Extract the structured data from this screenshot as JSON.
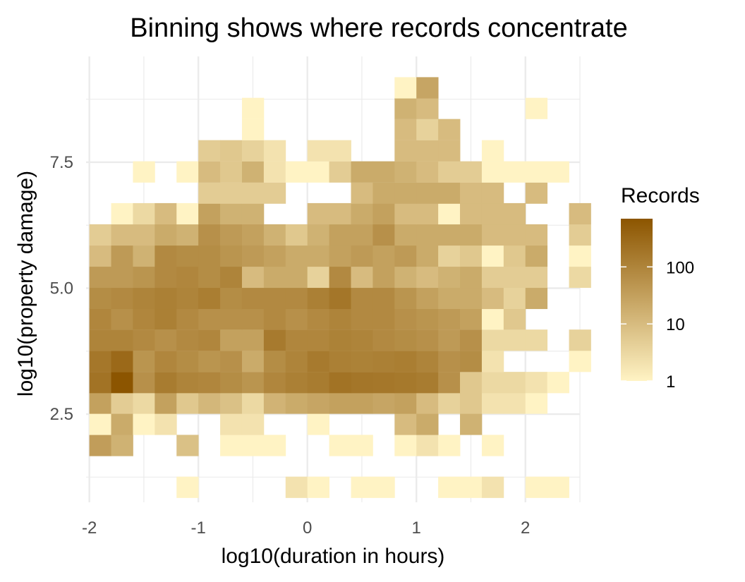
{
  "chart_data": {
    "type": "heatmap",
    "title": "Binning shows where records concentrate",
    "xlabel": "log10(duration in hours)",
    "ylabel": "log10(property damage)",
    "xlim": [
      -2.03,
      2.5
    ],
    "ylim": [
      0.75,
      9.6
    ],
    "x_ticks": [
      -2,
      -1,
      0,
      1,
      2
    ],
    "x_tick_labels": [
      "-2",
      "-1",
      "0",
      "1",
      "2"
    ],
    "y_ticks": [
      2.5,
      5.0,
      7.5
    ],
    "y_tick_labels": [
      "2.5",
      "5.0",
      "7.5"
    ],
    "grid": true,
    "bin_x_origin": -1.9,
    "bin_width_x": 0.2,
    "bin_y_origin": 0.84,
    "bin_width_y": 0.417,
    "color_scale": {
      "type": "log",
      "min": 1,
      "max": 700,
      "low_color": "#fff3c4",
      "high_color": "#8c5500"
    },
    "legend": {
      "title": "Records",
      "position": "right",
      "labels": [
        "100",
        "10",
        "1"
      ],
      "values": [
        100,
        10,
        1
      ]
    },
    "rows": [
      {
        "y": 1.05,
        "counts": [
          0,
          0,
          0,
          0,
          1,
          0,
          0,
          0,
          0,
          2,
          1,
          0,
          1,
          1,
          0,
          0,
          1,
          1,
          2,
          0,
          1,
          1,
          0
        ]
      },
      {
        "y": 1.88,
        "counts": [
          35,
          15,
          0,
          0,
          8,
          0,
          1,
          1,
          1,
          0,
          0,
          1,
          1,
          0,
          1,
          2,
          1,
          0,
          1,
          0,
          0,
          0,
          0
        ]
      },
      {
        "y": 2.3,
        "counts": [
          1,
          20,
          1,
          2,
          0,
          0,
          2,
          2,
          0,
          0,
          1,
          0,
          0,
          0,
          10,
          20,
          0,
          15,
          0,
          0,
          0,
          0,
          0
        ]
      },
      {
        "y": 2.72,
        "counts": [
          30,
          5,
          3,
          30,
          6,
          12,
          8,
          3,
          14,
          20,
          25,
          30,
          30,
          25,
          30,
          10,
          4,
          6,
          2,
          2,
          1,
          0,
          0
        ]
      },
      {
        "y": 3.13,
        "counts": [
          200,
          700,
          60,
          140,
          100,
          90,
          70,
          50,
          90,
          120,
          140,
          200,
          180,
          170,
          160,
          140,
          60,
          6,
          3,
          3,
          2,
          1,
          0
        ]
      },
      {
        "y": 3.55,
        "counts": [
          170,
          300,
          50,
          90,
          70,
          50,
          60,
          20,
          70,
          100,
          150,
          120,
          110,
          120,
          130,
          100,
          60,
          70,
          2,
          0,
          0,
          0,
          1
        ]
      },
      {
        "y": 3.97,
        "counts": [
          100,
          100,
          80,
          60,
          80,
          90,
          30,
          30,
          150,
          90,
          90,
          110,
          100,
          80,
          70,
          60,
          40,
          60,
          3,
          3,
          3,
          0,
          4
        ]
      },
      {
        "y": 4.39,
        "counts": [
          90,
          60,
          90,
          120,
          80,
          60,
          60,
          60,
          80,
          60,
          80,
          100,
          80,
          80,
          60,
          50,
          40,
          30,
          1,
          6,
          0,
          0,
          0
        ]
      },
      {
        "y": 4.8,
        "counts": [
          70,
          80,
          100,
          120,
          100,
          130,
          70,
          80,
          80,
          80,
          120,
          180,
          80,
          80,
          50,
          30,
          20,
          20,
          10,
          4,
          20,
          0,
          0
        ]
      },
      {
        "y": 5.22,
        "counts": [
          40,
          40,
          50,
          80,
          90,
          70,
          100,
          10,
          20,
          20,
          4,
          80,
          10,
          30,
          15,
          10,
          15,
          20,
          5,
          5,
          5,
          0,
          3
        ]
      },
      {
        "y": 5.64,
        "counts": [
          10,
          40,
          15,
          80,
          70,
          70,
          50,
          40,
          30,
          20,
          20,
          30,
          40,
          30,
          40,
          20,
          4,
          6,
          1,
          6,
          20,
          0,
          1
        ]
      },
      {
        "y": 6.06,
        "counts": [
          5,
          10,
          10,
          20,
          15,
          60,
          40,
          30,
          15,
          6,
          15,
          30,
          30,
          60,
          20,
          20,
          20,
          20,
          10,
          10,
          10,
          0,
          5
        ]
      },
      {
        "y": 6.48,
        "counts": [
          0,
          1,
          3,
          10,
          1,
          30,
          15,
          15,
          0,
          0,
          10,
          10,
          20,
          30,
          10,
          10,
          1,
          10,
          10,
          10,
          0,
          0,
          10
        ]
      },
      {
        "y": 6.89,
        "counts": [
          0,
          0,
          0,
          0,
          0,
          5,
          5,
          5,
          5,
          0,
          0,
          0,
          10,
          20,
          20,
          20,
          20,
          10,
          10,
          0,
          10,
          0,
          0
        ]
      },
      {
        "y": 7.31,
        "counts": [
          0,
          0,
          1,
          0,
          1,
          10,
          6,
          15,
          2,
          1,
          1,
          5,
          20,
          20,
          15,
          10,
          5,
          5,
          1,
          1,
          1,
          1,
          0
        ]
      },
      {
        "y": 7.73,
        "counts": [
          0,
          0,
          0,
          0,
          0,
          5,
          6,
          4,
          2,
          0,
          2,
          2,
          0,
          0,
          10,
          10,
          10,
          0,
          1,
          0,
          0,
          0,
          0
        ]
      },
      {
        "y": 8.15,
        "counts": [
          0,
          0,
          0,
          0,
          0,
          0,
          0,
          1,
          0,
          0,
          0,
          0,
          0,
          0,
          10,
          4,
          10,
          0,
          0,
          0,
          0,
          0,
          0
        ]
      },
      {
        "y": 8.57,
        "counts": [
          0,
          0,
          0,
          0,
          0,
          0,
          0,
          1,
          0,
          0,
          0,
          0,
          0,
          0,
          15,
          10,
          0,
          0,
          0,
          0,
          1,
          0,
          0
        ]
      },
      {
        "y": 8.98,
        "counts": [
          0,
          0,
          0,
          0,
          0,
          0,
          0,
          0,
          0,
          0,
          0,
          0,
          0,
          0,
          1,
          25,
          0,
          0,
          0,
          0,
          0,
          0,
          0
        ]
      }
    ]
  }
}
